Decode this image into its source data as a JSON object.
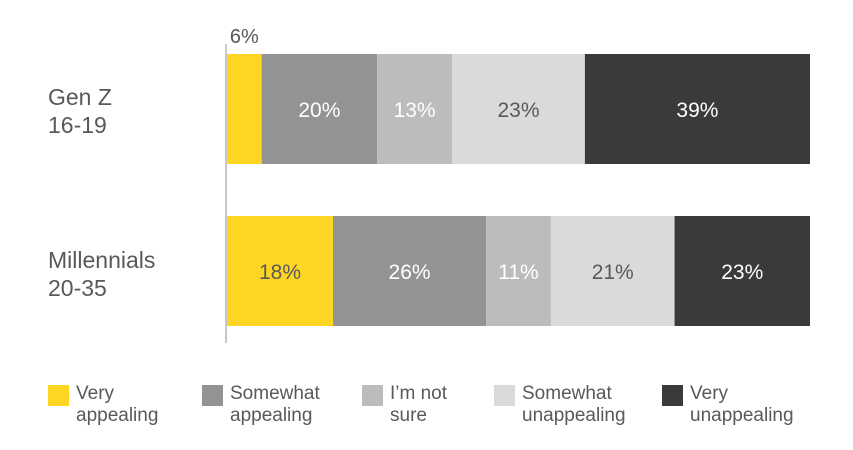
{
  "chart_data": {
    "type": "bar",
    "stacked": true,
    "orientation": "horizontal",
    "categories": [
      {
        "line1": "Gen Z",
        "line2": "16-19"
      },
      {
        "line1": "Millennials",
        "line2": "20-35"
      }
    ],
    "series": [
      {
        "name_line1": "Very",
        "name_line2": "appealing",
        "color": "#FFD524",
        "label_color": "#595959",
        "values": [
          6,
          18
        ],
        "labels": [
          "6%",
          "18%"
        ]
      },
      {
        "name_line1": "Somewhat",
        "name_line2": "appealing",
        "color": "#939396",
        "label_color": "#FFFFFF",
        "values": [
          20,
          26
        ],
        "labels": [
          "20%",
          "26%"
        ]
      },
      {
        "name_line1": "I’m not",
        "name_line2": "sure",
        "color": "#BCBCBE",
        "label_color": "#FFFFFF",
        "values": [
          13,
          11
        ],
        "labels": [
          "13%",
          "11%"
        ]
      },
      {
        "name_line1": "Somewhat",
        "name_line2": "unappealing",
        "color": "#DADADC",
        "label_color": "#595959",
        "values": [
          23,
          21
        ],
        "labels": [
          "23%",
          "21%"
        ]
      },
      {
        "name_line1": "Very",
        "name_line2": "unappealing",
        "color": "#3A3A3A",
        "label_color": "#FFFFFF",
        "values": [
          39,
          23
        ],
        "labels": [
          "39%",
          "23%"
        ]
      }
    ],
    "outside_labels": [
      {
        "category_index": 0,
        "series_index": 0,
        "text": "6%"
      }
    ],
    "legend_position": "bottom",
    "grid": false
  }
}
